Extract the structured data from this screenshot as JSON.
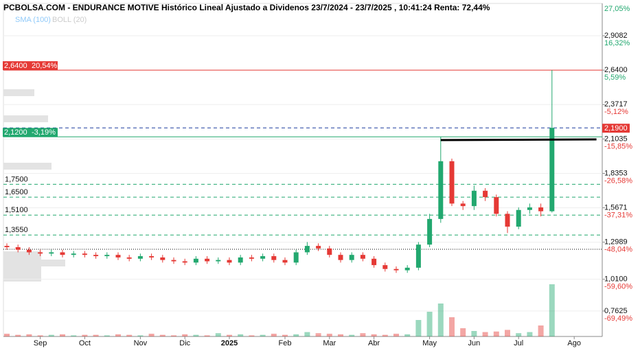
{
  "chart_data": {
    "type": "candlestick",
    "title": "PCBOLSA.COM - ENDURANCE MOTIVE Histórico Lineal Ajustado a Dividenos 23/7/2024 - 23/7/2025 , 10:41:24 Renta: 72,44%",
    "indicators": [
      {
        "name": "SMA (100)",
        "color": "#90caf9"
      },
      {
        "name": "BOLL (20)",
        "color": "#cccccc"
      }
    ],
    "categories": [
      null,
      null,
      null,
      "Sep",
      null,
      null,
      null,
      "Oct",
      null,
      null,
      null,
      null,
      "Nov",
      null,
      null,
      null,
      "Dic",
      null,
      null,
      null,
      "2025",
      null,
      null,
      null,
      null,
      "Feb",
      null,
      null,
      null,
      "Mar",
      null,
      null,
      null,
      "Abr",
      null,
      null,
      null,
      null,
      "May",
      null,
      null,
      null,
      "Jun",
      null,
      null,
      null,
      "Jul",
      null,
      null,
      null,
      null,
      "Ago",
      null,
      null
    ],
    "up_color": "#22a86f",
    "down_color": "#e53935",
    "open": [
      1.27,
      1.26,
      1.24,
      1.22,
      1.21,
      1.22,
      1.2,
      1.21,
      1.2,
      1.19,
      1.2,
      1.18,
      1.17,
      1.19,
      1.18,
      1.16,
      1.15,
      1.14,
      1.17,
      1.15,
      1.16,
      1.14,
      1.18,
      1.17,
      1.19,
      1.16,
      1.14,
      1.22,
      1.27,
      1.25,
      1.2,
      1.16,
      1.2,
      1.17,
      1.12,
      1.09,
      1.08,
      1.1,
      1.28,
      1.48,
      1.93,
      1.6,
      1.58,
      1.7,
      1.65,
      1.52,
      1.42,
      1.55,
      1.57,
      1.54,
      null,
      null,
      null,
      null
    ],
    "high": [
      1.29,
      1.28,
      1.26,
      1.24,
      1.24,
      1.24,
      1.23,
      1.23,
      1.22,
      1.22,
      1.22,
      1.2,
      1.21,
      1.21,
      1.2,
      1.18,
      1.17,
      1.19,
      1.19,
      1.18,
      1.18,
      1.2,
      1.2,
      1.21,
      1.21,
      1.18,
      1.24,
      1.3,
      1.29,
      1.27,
      1.22,
      1.22,
      1.22,
      1.19,
      1.14,
      1.11,
      1.12,
      1.3,
      1.52,
      2.12,
      1.95,
      1.62,
      1.74,
      1.72,
      1.67,
      1.54,
      1.57,
      1.6,
      1.6,
      2.64,
      null,
      null,
      null,
      null
    ],
    "low": [
      1.24,
      1.22,
      1.2,
      1.19,
      1.19,
      1.18,
      1.18,
      1.18,
      1.17,
      1.17,
      1.16,
      1.15,
      1.15,
      1.16,
      1.14,
      1.13,
      1.12,
      1.12,
      1.13,
      1.13,
      1.12,
      1.12,
      1.15,
      1.15,
      1.14,
      1.12,
      1.12,
      1.2,
      1.23,
      1.18,
      1.14,
      1.14,
      1.15,
      1.1,
      1.07,
      1.06,
      1.06,
      1.08,
      1.26,
      1.45,
      1.58,
      1.55,
      1.55,
      1.62,
      1.5,
      1.37,
      1.4,
      1.52,
      1.5,
      1.53,
      null,
      null,
      null,
      null
    ],
    "close": [
      1.26,
      1.24,
      1.22,
      1.21,
      1.22,
      1.2,
      1.21,
      1.2,
      1.19,
      1.2,
      1.18,
      1.17,
      1.19,
      1.18,
      1.16,
      1.15,
      1.14,
      1.17,
      1.15,
      1.16,
      1.14,
      1.18,
      1.17,
      1.19,
      1.16,
      1.14,
      1.22,
      1.27,
      1.25,
      1.2,
      1.16,
      1.2,
      1.17,
      1.12,
      1.09,
      1.08,
      1.1,
      1.28,
      1.48,
      1.93,
      1.6,
      1.58,
      1.7,
      1.65,
      1.52,
      1.42,
      1.55,
      1.57,
      1.54,
      2.19,
      null,
      null,
      null,
      null
    ],
    "volume": [
      5,
      3,
      4,
      2,
      3,
      4,
      2,
      3,
      3,
      2,
      4,
      3,
      2,
      5,
      3,
      2,
      4,
      3,
      2,
      6,
      3,
      4,
      2,
      3,
      5,
      3,
      4,
      8,
      6,
      5,
      4,
      3,
      6,
      4,
      3,
      5,
      4,
      30,
      45,
      60,
      35,
      15,
      10,
      8,
      9,
      12,
      6,
      8,
      20,
      95,
      null,
      null,
      null,
      null
    ],
    "volume_lim": [
      0,
      100
    ],
    "ylim": [
      0.564,
      3.16
    ],
    "yticks": [
      {
        "value": 2.9082,
        "label": "2,9082"
      },
      {
        "value": 2.64,
        "label": "2,6400"
      },
      {
        "value": 2.3717,
        "label": "2,3717"
      },
      {
        "value": 2.1035,
        "label": "2,1035"
      },
      {
        "value": 1.8353,
        "label": "1,8353"
      },
      {
        "value": 1.5671,
        "label": "1,5671"
      },
      {
        "value": 1.2989,
        "label": "1,2989"
      },
      {
        "value": 1.01,
        "label": "1,0100"
      },
      {
        "value": 0.7625,
        "label": "0,7625"
      }
    ],
    "ytick_percents": [
      "16,32%",
      "5,59%",
      "-5,12%",
      "-15,85%",
      "-26,58%",
      "-37,31%",
      "-48,04%",
      "-59,60%",
      "-69,49%"
    ],
    "top_percent": "27,05%",
    "levels": [
      {
        "value": 2.64,
        "color": "#e53935",
        "style": "solid",
        "label": "2,6400",
        "percent": "20,54%",
        "box": "left"
      },
      {
        "value": 2.19,
        "color": "#1a3a9e",
        "style": "dashed",
        "label": "2,1900",
        "box": "right",
        "box_color": "#e53935"
      },
      {
        "value": 2.12,
        "color": "#22a86f",
        "style": "solid",
        "label": "2,1200",
        "percent": "-3,19%",
        "box": "left"
      },
      {
        "value": 1.75,
        "color": "#22a86f",
        "style": "dashed",
        "label": "1,7500"
      },
      {
        "value": 1.65,
        "color": "#22a86f",
        "style": "dashed",
        "label": "1,6500"
      },
      {
        "value": 1.51,
        "color": "#22a86f",
        "style": "dashed",
        "label": "1,5100"
      },
      {
        "value": 1.355,
        "color": "#22a86f",
        "style": "dashed",
        "label": "1,3550"
      },
      {
        "value": 1.244,
        "color": "#000000",
        "style": "dotted"
      }
    ],
    "trendline": {
      "start": 39,
      "end": 53,
      "values": [
        2.095,
        2.1
      ]
    }
  }
}
